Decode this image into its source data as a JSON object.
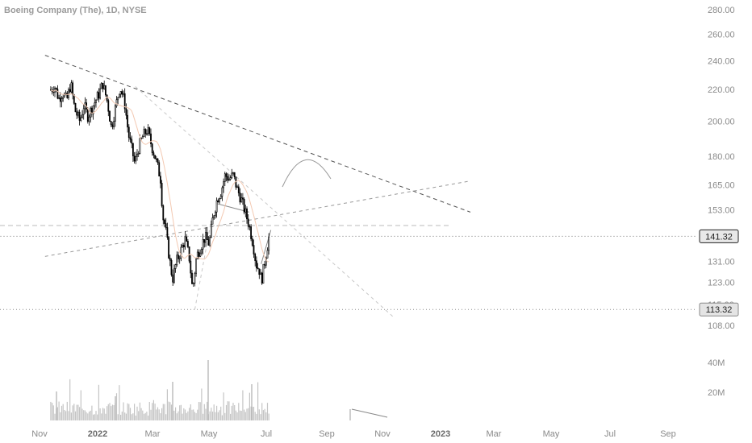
{
  "header": {
    "title": "Boeing Company (The), 1D, NYSE"
  },
  "chart_data": {
    "type": "candlestick",
    "price_axis": {
      "scale": "log",
      "ticks": [
        "280.00",
        "260.00",
        "240.00",
        "220.00",
        "200.00",
        "180.00",
        "165.00",
        "153.00",
        "131.00",
        "123.00",
        "108.00"
      ],
      "hidden_tick": "115.00"
    },
    "volume_axis": {
      "ticks": [
        "40M",
        "20M"
      ]
    },
    "time_axis": {
      "ticks": [
        "Nov",
        "2022",
        "Mar",
        "May",
        "Jul",
        "Sep",
        "Nov",
        "2023",
        "Mar",
        "May",
        "Jul",
        "Sep"
      ],
      "bold": [
        "2022",
        "2023"
      ]
    },
    "price_badges": [
      {
        "label": "141.32",
        "value": 141.32,
        "style": "dark"
      },
      {
        "label": "113.32",
        "value": 113.32,
        "style": "grey"
      }
    ],
    "horizontal_levels": [
      146,
      141.32,
      113.32
    ],
    "close_path": [
      [
        "2021-10-11",
        220
      ],
      [
        "2021-10-18",
        222
      ],
      [
        "2021-10-25",
        214
      ],
      [
        "2021-11-01",
        218
      ],
      [
        "2021-11-08",
        213
      ],
      [
        "2021-11-15",
        224
      ],
      [
        "2021-11-22",
        207
      ],
      [
        "2021-12-01",
        200
      ],
      [
        "2021-12-08",
        210
      ],
      [
        "2021-12-15",
        203
      ],
      [
        "2022-01-03",
        217
      ],
      [
        "2022-01-10",
        224
      ],
      [
        "2022-01-18",
        212
      ],
      [
        "2022-01-25",
        196
      ],
      [
        "2022-02-01",
        208
      ],
      [
        "2022-02-09",
        222
      ],
      [
        "2022-02-17",
        212
      ],
      [
        "2022-02-24",
        192
      ],
      [
        "2022-03-07",
        176
      ],
      [
        "2022-03-14",
        185
      ],
      [
        "2022-03-21",
        191
      ],
      [
        "2022-03-29",
        195
      ],
      [
        "2022-04-06",
        185
      ],
      [
        "2022-04-13",
        178
      ],
      [
        "2022-04-21",
        168
      ],
      [
        "2022-04-25",
        150
      ],
      [
        "2022-04-29",
        146
      ],
      [
        "2022-05-06",
        133
      ],
      [
        "2022-05-12",
        124
      ],
      [
        "2022-05-19",
        131
      ],
      [
        "2022-05-26",
        135
      ],
      [
        "2022-06-03",
        140
      ],
      [
        "2022-06-10",
        133
      ],
      [
        "2022-06-16",
        120
      ],
      [
        "2022-06-23",
        133
      ],
      [
        "2022-06-30",
        137
      ],
      [
        "2022-07-08",
        141
      ],
      [
        "2022-07-15",
        138
      ],
      [
        "2022-07-22",
        150
      ],
      [
        "2022-07-29",
        158
      ],
      [
        "2022-08-05",
        162
      ],
      [
        "2022-08-12",
        170
      ],
      [
        "2022-08-19",
        168
      ],
      [
        "2022-08-26",
        170
      ],
      [
        "2022-09-02",
        163
      ],
      [
        "2022-09-09",
        158
      ],
      [
        "2022-09-16",
        152
      ],
      [
        "2022-09-23",
        146
      ],
      [
        "2022-09-30",
        138
      ],
      [
        "2022-10-05",
        130
      ],
      [
        "2022-10-12",
        127
      ],
      [
        "2022-10-14",
        123
      ],
      [
        "2022-10-19",
        129
      ],
      [
        "2022-10-24",
        136
      ],
      [
        "2022-10-28",
        141.32
      ]
    ],
    "trendlines": [
      {
        "style": "dark-dashed",
        "from": [
          "2021-10-01",
          244
        ],
        "to": [
          "2023-10-15",
          152
        ]
      },
      {
        "style": "grey-dashed",
        "from": [
          "2021-10-01",
          133
        ],
        "to": [
          "2023-10-15",
          167
        ]
      },
      {
        "style": "light-dashed",
        "from": [
          "2022-03-08",
          222
        ],
        "to": [
          "2023-06-01",
          111
        ]
      },
      {
        "style": "light-dashed",
        "from": [
          "2022-06-20",
          113.32
        ],
        "to": [
          "2022-07-20",
          150
        ]
      },
      {
        "style": "grey-solid",
        "from": [
          "2022-07-28",
          156
        ],
        "to": [
          "2022-09-23",
          152
        ]
      },
      {
        "style": "grey-solid",
        "from": [
          "2022-10-14",
          130
        ],
        "to": [
          "2022-10-31",
          144
        ]
      }
    ]
  }
}
